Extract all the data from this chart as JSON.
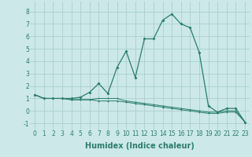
{
  "xlabel": "Humidex (Indice chaleur)",
  "x": [
    0,
    1,
    2,
    3,
    4,
    5,
    6,
    7,
    8,
    9,
    10,
    11,
    12,
    13,
    14,
    15,
    16,
    17,
    18,
    19,
    20,
    21,
    22,
    23
  ],
  "line1": [
    1.3,
    1.0,
    1.0,
    1.0,
    1.0,
    1.1,
    1.5,
    2.2,
    1.4,
    3.5,
    4.8,
    2.7,
    5.8,
    5.8,
    7.3,
    7.8,
    7.0,
    6.7,
    4.7,
    0.4,
    -0.1,
    0.2,
    0.2,
    -0.9
  ],
  "line2": [
    1.3,
    1.0,
    1.0,
    1.0,
    0.9,
    0.9,
    0.9,
    1.0,
    1.0,
    1.0,
    0.8,
    0.7,
    0.6,
    0.5,
    0.4,
    0.3,
    0.2,
    0.1,
    0.0,
    -0.1,
    -0.1,
    0.0,
    0.0,
    -0.9
  ],
  "line3": [
    1.3,
    1.0,
    1.0,
    1.0,
    0.9,
    0.9,
    0.9,
    0.8,
    0.8,
    0.8,
    0.7,
    0.6,
    0.5,
    0.4,
    0.3,
    0.2,
    0.1,
    0.0,
    -0.1,
    -0.2,
    -0.2,
    -0.1,
    -0.1,
    -0.9
  ],
  "ylim": [
    -1.5,
    8.8
  ],
  "yticks": [
    -1,
    0,
    1,
    2,
    3,
    4,
    5,
    6,
    7,
    8
  ],
  "xticks": [
    0,
    1,
    2,
    3,
    4,
    5,
    6,
    7,
    8,
    9,
    10,
    11,
    12,
    13,
    14,
    15,
    16,
    17,
    18,
    19,
    20,
    21,
    22,
    23
  ],
  "line_color": "#2a7d6e",
  "bg_color": "#cce8e8",
  "grid_color": "#aacfcf",
  "tick_label_fontsize": 5.5,
  "axis_label_fontsize": 7.0
}
